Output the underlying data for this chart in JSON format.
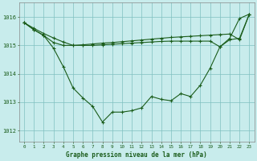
{
  "title": "Graphe pression niveau de la mer (hPa)",
  "bg_color": "#c8ecec",
  "grid_color": "#80c0c0",
  "line_color": "#1a5c1a",
  "xlim": [
    -0.5,
    23.5
  ],
  "ylim": [
    1011.6,
    1016.5
  ],
  "yticks": [
    1012,
    1013,
    1014,
    1015,
    1016
  ],
  "xticks": [
    0,
    1,
    2,
    3,
    4,
    5,
    6,
    7,
    8,
    9,
    10,
    11,
    12,
    13,
    14,
    15,
    16,
    17,
    18,
    19,
    20,
    21,
    22,
    23
  ],
  "series1": [
    1015.8,
    1015.55,
    1015.35,
    1014.9,
    1014.25,
    1013.5,
    1013.15,
    1012.85,
    1012.3,
    1012.65,
    1012.65,
    1012.7,
    1012.8,
    1013.2,
    1013.1,
    1013.05,
    1013.3,
    1013.2,
    1013.6,
    1014.2,
    1014.95,
    1015.25,
    1015.95,
    1016.1
  ],
  "series2": [
    1015.8,
    1015.6,
    1015.42,
    1015.26,
    1015.12,
    1015.0,
    1015.02,
    1015.05,
    1015.08,
    1015.1,
    1015.13,
    1015.16,
    1015.19,
    1015.22,
    1015.25,
    1015.28,
    1015.3,
    1015.32,
    1015.34,
    1015.36,
    1015.38,
    1015.4,
    1015.2,
    1016.1
  ],
  "series3": [
    1015.8,
    1015.55,
    1015.35,
    1015.1,
    1015.0,
    1015.0,
    1015.0,
    1015.0,
    1015.02,
    1015.04,
    1015.06,
    1015.08,
    1015.1,
    1015.12,
    1015.14,
    1015.15,
    1015.15,
    1015.15,
    1015.15,
    1015.15,
    1014.95,
    1015.2,
    1015.25,
    1016.1
  ]
}
